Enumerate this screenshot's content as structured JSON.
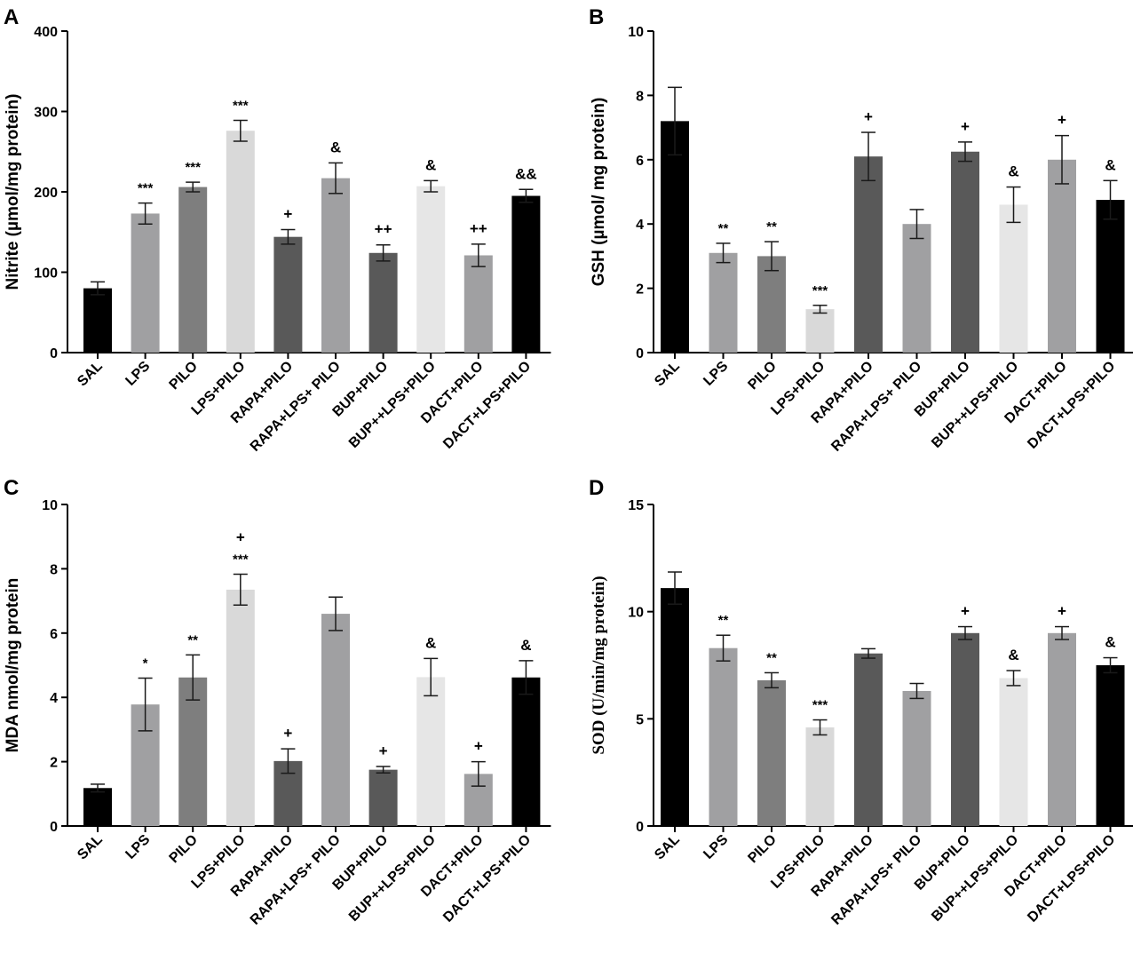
{
  "chart_data": [
    {
      "panel": "A",
      "type": "bar",
      "ylabel": "Nitrite (µmol/mg protein)",
      "ylim": [
        0,
        400
      ],
      "yticks": [
        0,
        100,
        200,
        300,
        400
      ],
      "categories": [
        "SAL",
        "LPS",
        "PILO",
        "LPS+PILO",
        "RAPA+PILO",
        "RAPA+LPS+ PILO",
        "BUP+PILO",
        "BUP++LPS+PILO",
        "DACT+PILO",
        "DACT+LPS+PILO"
      ],
      "values": [
        80,
        173,
        206,
        276,
        144,
        217,
        124,
        207,
        121,
        195
      ],
      "errors": [
        8,
        13,
        6,
        13,
        9,
        19,
        10,
        7,
        14,
        8
      ],
      "annotations": [
        [],
        [
          "***"
        ],
        [
          "***"
        ],
        [
          "***"
        ],
        [
          "+"
        ],
        [
          "&"
        ],
        [
          "++"
        ],
        [
          "&"
        ],
        [
          "++"
        ],
        [
          "&&"
        ]
      ],
      "colors": [
        "#000000",
        "#a0a0a2",
        "#7e7e7e",
        "#d9d9d9",
        "#595959",
        "#a0a0a2",
        "#595959",
        "#e6e6e6",
        "#a0a0a2",
        "#000000"
      ]
    },
    {
      "panel": "B",
      "type": "bar",
      "ylabel": "GSH (µmol/ mg protein)",
      "ylim": [
        0,
        10
      ],
      "yticks": [
        0,
        2,
        4,
        6,
        8,
        10
      ],
      "categories": [
        "SAL",
        "LPS",
        "PILO",
        "LPS+PILO",
        "RAPA+PILO",
        "RAPA+LPS+ PILO",
        "BUP+PILO",
        "BUP++LPS+PILO",
        "DACT+PILO",
        "DACT+LPS+PILO"
      ],
      "values": [
        7.2,
        3.1,
        3.0,
        1.35,
        6.1,
        4.0,
        6.25,
        4.6,
        6.0,
        4.75
      ],
      "errors": [
        1.05,
        0.3,
        0.45,
        0.12,
        0.75,
        0.45,
        0.3,
        0.55,
        0.75,
        0.6
      ],
      "annotations": [
        [],
        [
          "**"
        ],
        [
          "**"
        ],
        [
          "***"
        ],
        [
          "+"
        ],
        [],
        [
          "+"
        ],
        [
          "&"
        ],
        [
          "+"
        ],
        [
          "&"
        ]
      ],
      "colors": [
        "#000000",
        "#a0a0a2",
        "#7e7e7e",
        "#d9d9d9",
        "#595959",
        "#a0a0a2",
        "#595959",
        "#e6e6e6",
        "#a0a0a2",
        "#000000"
      ]
    },
    {
      "panel": "C",
      "type": "bar",
      "ylabel": "MDA nmol/mg protein",
      "ylim": [
        0,
        10
      ],
      "yticks": [
        0,
        2,
        4,
        6,
        8,
        10
      ],
      "categories": [
        "SAL",
        "LPS",
        "PILO",
        "LPS+PILO",
        "RAPA+PILO",
        "RAPA+LPS+ PILO",
        "BUP+PILO",
        "BUP++LPS+PILO",
        "DACT+PILO",
        "DACT+LPS+PILO"
      ],
      "values": [
        1.18,
        3.78,
        4.62,
        7.35,
        2.02,
        6.6,
        1.75,
        4.63,
        1.62,
        4.62
      ],
      "errors": [
        0.12,
        0.82,
        0.7,
        0.48,
        0.38,
        0.52,
        0.1,
        0.58,
        0.38,
        0.52
      ],
      "annotations": [
        [],
        [
          "*"
        ],
        [
          "**"
        ],
        [
          "***",
          "+"
        ],
        [
          "+"
        ],
        [],
        [
          "+"
        ],
        [
          "&"
        ],
        [
          "+"
        ],
        [
          "&"
        ]
      ],
      "colors": [
        "#000000",
        "#a0a0a2",
        "#7e7e7e",
        "#d9d9d9",
        "#595959",
        "#a0a0a2",
        "#595959",
        "#e6e6e6",
        "#a0a0a2",
        "#000000"
      ]
    },
    {
      "panel": "D",
      "type": "bar",
      "ylabel": "SOD (U/min/mg protein)",
      "ylim": [
        0,
        15
      ],
      "yticks": [
        0,
        5,
        10,
        15
      ],
      "categories": [
        "SAL",
        "LPS",
        "PILO",
        "LPS+PILO",
        "RAPA+PILO",
        "RAPA+LPS+ PILO",
        "BUP+PILO",
        "BUP++LPS+PILO",
        "DACT+PILO",
        "DACT+LPS+PILO"
      ],
      "values": [
        11.1,
        8.3,
        6.8,
        4.6,
        8.05,
        6.3,
        9.0,
        6.9,
        9.0,
        7.5
      ],
      "errors": [
        0.75,
        0.6,
        0.35,
        0.35,
        0.22,
        0.35,
        0.3,
        0.35,
        0.3,
        0.35
      ],
      "annotations": [
        [],
        [
          "**"
        ],
        [
          "**"
        ],
        [
          "***"
        ],
        [],
        [],
        [
          "+"
        ],
        [
          "&"
        ],
        [
          "+"
        ],
        [
          "&"
        ]
      ],
      "colors": [
        "#000000",
        "#a0a0a2",
        "#7e7e7e",
        "#d9d9d9",
        "#595959",
        "#a0a0a2",
        "#595959",
        "#e6e6e6",
        "#a0a0a2",
        "#000000"
      ]
    }
  ]
}
